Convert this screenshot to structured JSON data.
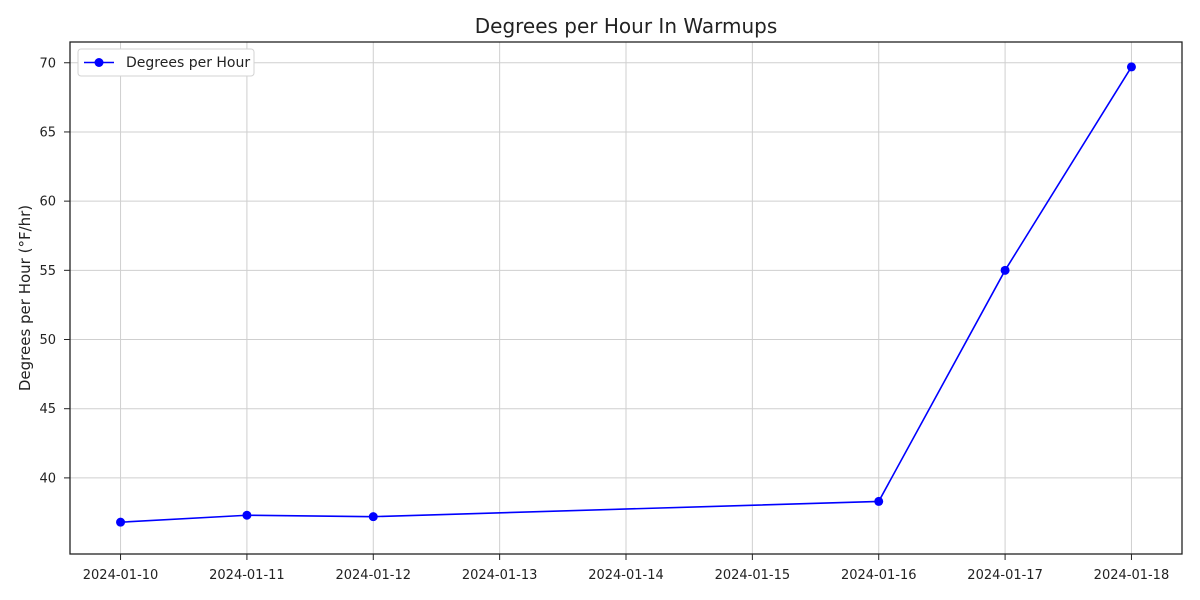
{
  "chart_data": {
    "type": "line",
    "title": "Degrees per Hour In Warmups",
    "xlabel": "",
    "ylabel": "Degrees per Hour (°F/hr)",
    "x_tick_labels": [
      "2024-01-10",
      "2024-01-11",
      "2024-01-12",
      "2024-01-13",
      "2024-01-14",
      "2024-01-15",
      "2024-01-16",
      "2024-01-17",
      "2024-01-18"
    ],
    "y_tick_labels": [
      "40",
      "45",
      "50",
      "55",
      "60",
      "65",
      "70"
    ],
    "y_ticks": [
      40,
      45,
      50,
      55,
      60,
      65,
      70
    ],
    "xlim": [
      "2024-01-09T14:24:00",
      "2024-01-18T09:36:00"
    ],
    "ylim": [
      34.5,
      71.5
    ],
    "grid": true,
    "legend_position": "top-left",
    "series": [
      {
        "name": "Degrees per Hour",
        "color": "#0000ff",
        "marker": "circle",
        "points": [
          {
            "x": "2024-01-10",
            "y": 36.8
          },
          {
            "x": "2024-01-11",
            "y": 37.3
          },
          {
            "x": "2024-01-12",
            "y": 37.2
          },
          {
            "x": "2024-01-16",
            "y": 38.3
          },
          {
            "x": "2024-01-17",
            "y": 55.0
          },
          {
            "x": "2024-01-18",
            "y": 69.7
          }
        ]
      }
    ]
  }
}
